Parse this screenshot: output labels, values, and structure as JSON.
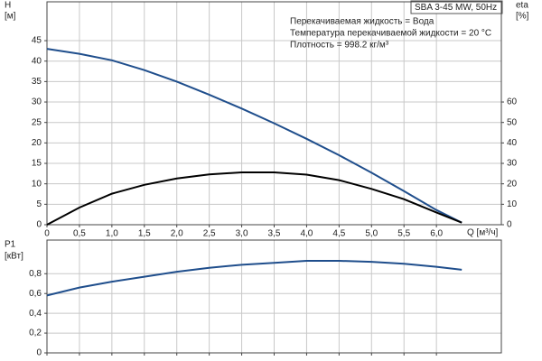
{
  "chart_data": [
    {
      "type": "line",
      "title": "SBA 3-45 MW, 50Hz",
      "annotations": [
        "Перекачиваемая жидкость = Вода",
        "Температура перекачиваемой жидкости = 20 °C",
        "Плотность = 998.2 кг/м³"
      ],
      "y_label": "H",
      "y_unit": "[м]",
      "y2_label": "eta",
      "y2_unit": "[%]",
      "x_label": "Q [м³/ч]",
      "x": [
        0,
        0.5,
        1,
        1.5,
        2,
        2.5,
        3,
        3.5,
        4,
        4.5,
        5,
        5.5,
        6,
        6.39
      ],
      "series": [
        {
          "name": "H",
          "color": "#1f4e8c",
          "values": [
            43,
            41.8,
            40.2,
            37.8,
            35,
            31.8,
            28.4,
            24.8,
            21,
            17,
            12.7,
            8.2,
            3.6,
            0.5
          ]
        },
        {
          "name": "eta",
          "color": "#000000",
          "axis": "y2",
          "values": [
            0,
            8.4,
            15.2,
            19.5,
            22.6,
            24.6,
            25.6,
            25.6,
            24.5,
            21.8,
            17.5,
            12.5,
            6,
            1
          ]
        }
      ],
      "xlim": [
        0,
        7
      ],
      "xticks": [
        0,
        {
          "value": 0.5,
          "label": "0,5"
        },
        {
          "value": 1,
          "label": "1,0"
        },
        {
          "value": 1.5,
          "label": "1,5"
        },
        {
          "value": 2,
          "label": "2,0"
        },
        {
          "value": 2.5,
          "label": "2,5"
        },
        {
          "value": 3,
          "label": "3,0"
        },
        {
          "value": 3.5,
          "label": "3,5"
        },
        {
          "value": 4,
          "label": "4,0"
        },
        {
          "value": 4.5,
          "label": "4,5"
        },
        {
          "value": 5,
          "label": "5,0"
        },
        {
          "value": 5.5,
          "label": "5,5"
        },
        {
          "value": 6,
          "label": "6,0"
        }
      ],
      "ylim": [
        0,
        54.5
      ],
      "yticks": [
        0,
        5,
        10,
        15,
        20,
        25,
        30,
        35,
        40,
        45
      ],
      "y2lim": [
        0,
        109
      ],
      "y2ticks": [
        0,
        10,
        20,
        30,
        40,
        50,
        60
      ],
      "grid": true
    },
    {
      "type": "line",
      "y_label": "P1",
      "y_unit": "[кВт]",
      "x": [
        0,
        0.5,
        1,
        1.5,
        2,
        2.5,
        3,
        3.5,
        4,
        4.5,
        5,
        5.5,
        6,
        6.39
      ],
      "series": [
        {
          "name": "P1",
          "color": "#1f4e8c",
          "values": [
            0.58,
            0.66,
            0.72,
            0.77,
            0.82,
            0.86,
            0.89,
            0.91,
            0.93,
            0.93,
            0.92,
            0.9,
            0.87,
            0.84
          ]
        }
      ],
      "xlim": [
        0,
        7
      ],
      "ylim": [
        0,
        1.14
      ],
      "yticks": [
        0,
        {
          "value": 0.2,
          "label": "0,2"
        },
        {
          "value": 0.4,
          "label": "0,4"
        },
        {
          "value": 0.6,
          "label": "0,6"
        },
        {
          "value": 0.8,
          "label": "0,8"
        }
      ],
      "grid": true
    }
  ]
}
